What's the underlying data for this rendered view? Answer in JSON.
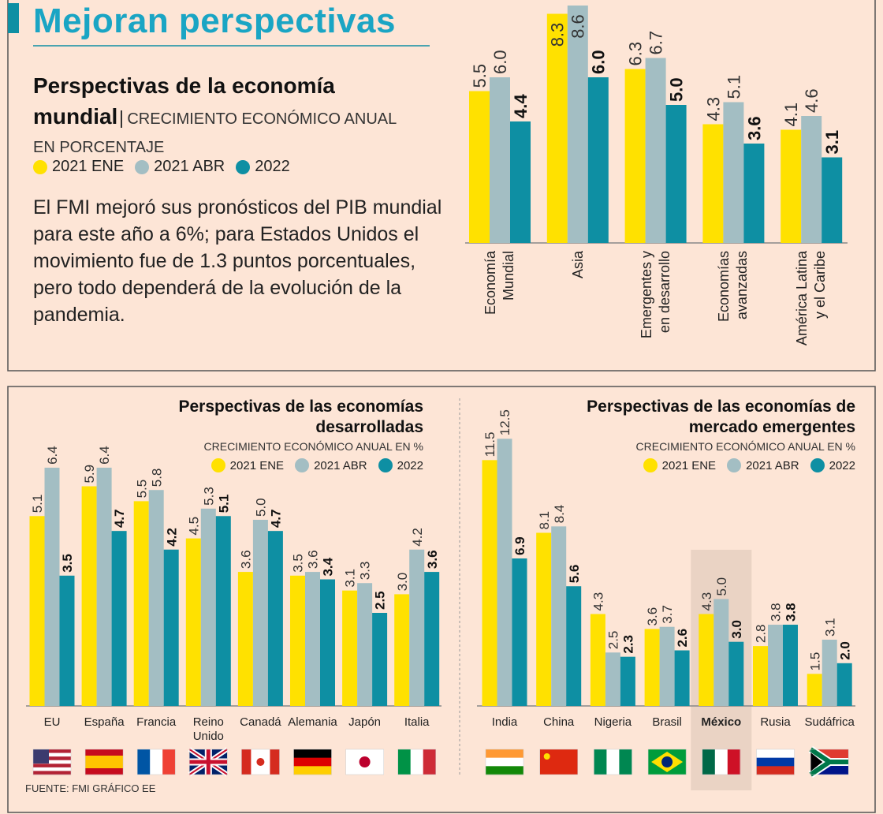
{
  "header": {
    "title": "Mejoran perspectivas"
  },
  "intro": "El FMI mejoró sus pronósticos del PIB mundial para este año a 6%; para Estados Unidos el movimiento fue de 1.3 puntos porcentuales, pero todo dependerá de la evolución de la pandemia.",
  "chart_data": [
    {
      "type": "bar",
      "title": "Perspectivas de la economía mundial",
      "subtitle": "CRECIMIENTO ECONÓMICO ANUAL EN PORCENTAJE",
      "categories": [
        "Economía Mundial",
        "Asia",
        "Emergentes y en desarrollo",
        "Economías avanzadas",
        "América Latina y el Caribe"
      ],
      "series": [
        {
          "name": "2021 ENE",
          "color": "#ffe100",
          "values": [
            5.5,
            8.3,
            6.3,
            4.3,
            4.1
          ],
          "value_labels": [
            "5.5",
            "8.3",
            "6.3",
            "4.3",
            "4.1"
          ]
        },
        {
          "name": "2021 ABR",
          "color": "#a3bec3",
          "values": [
            6.0,
            8.6,
            6.7,
            5.1,
            4.6
          ],
          "value_labels": [
            "6.0",
            "8.6",
            "6.7",
            "5.1",
            "4.6"
          ]
        },
        {
          "name": "2022",
          "color": "#0e8fa3",
          "values": [
            4.4,
            6.0,
            5.0,
            3.6,
            3.1
          ],
          "value_labels": [
            "4.4",
            "6.0",
            "5.0",
            "3.6",
            "3.1"
          ]
        }
      ]
    },
    {
      "type": "bar",
      "title": "Perspectivas de las economías desarrolladas",
      "subtitle": "CRECIMIENTO ECONÓMICO ANUAL EN %",
      "categories": [
        "EU",
        "España",
        "Francia",
        "Reino Unido",
        "Canadá",
        "Alemania",
        "Japón",
        "Italia"
      ],
      "series": [
        {
          "name": "2021 ENE",
          "color": "#ffe100",
          "values": [
            5.1,
            5.9,
            5.5,
            4.5,
            3.6,
            3.5,
            3.1,
            3.0
          ],
          "value_labels": [
            "5.1",
            "5.9",
            "5.5",
            "4.5",
            "3.6",
            "3.5",
            "3.1",
            "3.0"
          ]
        },
        {
          "name": "2021 ABR",
          "color": "#a3bec3",
          "values": [
            6.4,
            6.4,
            5.8,
            5.3,
            5.0,
            3.6,
            3.3,
            4.2
          ],
          "value_labels": [
            "6.4",
            "6.4",
            "5.8",
            "5.3",
            "5.0",
            "3.6",
            "3.3",
            "4.2"
          ]
        },
        {
          "name": "2022",
          "color": "#0e8fa3",
          "values": [
            3.5,
            4.7,
            4.2,
            5.1,
            4.7,
            3.4,
            2.5,
            3.6
          ],
          "value_labels": [
            "3.5",
            "4.7",
            "4.2",
            "5.1",
            "4.7",
            "3.4",
            "2.5",
            "3.6"
          ]
        }
      ]
    },
    {
      "type": "bar",
      "title": "Perspectivas de las economías de mercado emergentes",
      "subtitle": "CRECIMIENTO ECONÓMICO ANUAL EN %",
      "categories": [
        "India",
        "China",
        "Nigeria",
        "Brasil",
        "México",
        "Rusia",
        "Sudáfrica"
      ],
      "highlight": "México",
      "series": [
        {
          "name": "2021 ENE",
          "color": "#ffe100",
          "values": [
            11.5,
            8.1,
            4.3,
            3.6,
            4.3,
            2.8,
            1.5
          ],
          "value_labels": [
            "11.5",
            "8.1",
            "4.3",
            "3.6",
            "4.3",
            "2.8",
            "1.5"
          ]
        },
        {
          "name": "2021 ABR",
          "color": "#a3bec3",
          "values": [
            12.5,
            8.4,
            2.5,
            3.7,
            5.0,
            3.8,
            3.1
          ],
          "value_labels": [
            "12.5",
            "8.4",
            "2.5",
            "3.7",
            "5.0",
            "3.8",
            "3.1"
          ]
        },
        {
          "name": "2022",
          "color": "#0e8fa3",
          "values": [
            6.9,
            5.6,
            2.3,
            2.6,
            3.0,
            3.8,
            2.0
          ],
          "value_labels": [
            "6.9",
            "5.6",
            "2.3",
            "2.6",
            "3.0",
            "3.8",
            "2.0"
          ]
        }
      ]
    }
  ],
  "footer": {
    "source": "FUENTE: FMI GRÁFICO EE"
  }
}
